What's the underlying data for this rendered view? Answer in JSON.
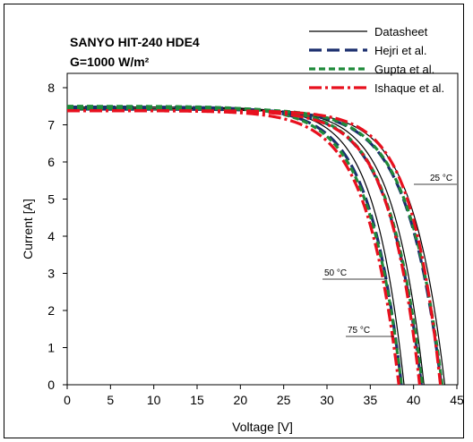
{
  "chart_data": {
    "type": "line",
    "title": "SANYO HIT-240 HDE4",
    "subtitle": "G=1000 W/m²",
    "xlabel": "Voltage [V]",
    "ylabel": "Current [A]",
    "xlim": [
      0,
      45
    ],
    "ylim": [
      0,
      8
    ],
    "xticks": [
      "0",
      "5",
      "10",
      "15",
      "20",
      "25",
      "30",
      "35",
      "40",
      "45"
    ],
    "yticks": [
      "0",
      "1",
      "2",
      "3",
      "4",
      "5",
      "6",
      "7",
      "8"
    ],
    "grid": false,
    "legend_position": "top-right",
    "annotations": [
      "25 °C",
      "50 °C",
      "75 °C"
    ],
    "series": [
      {
        "name": "Datasheet",
        "color": "#000000",
        "style": "solid",
        "curves": [
          {
            "temp": "25 °C",
            "isc": 7.4,
            "voc": 43.6,
            "knee": 32.5
          },
          {
            "temp": "50 °C",
            "isc": 7.44,
            "voc": 41.2,
            "knee": 30.5
          },
          {
            "temp": "75 °C",
            "isc": 7.48,
            "voc": 38.9,
            "knee": 28.5
          }
        ]
      },
      {
        "name": "Hejri et al.",
        "color": "#1b2f6e",
        "style": "dash",
        "curves": [
          {
            "temp": "25 °C",
            "isc": 7.42,
            "voc": 43.2,
            "knee": 31.5
          },
          {
            "temp": "50 °C",
            "isc": 7.45,
            "voc": 40.9,
            "knee": 29.5
          },
          {
            "temp": "75 °C",
            "isc": 7.48,
            "voc": 38.6,
            "knee": 27.5
          }
        ]
      },
      {
        "name": "Gupta et al.",
        "color": "#1f8a3a",
        "style": "dash-short",
        "curves": [
          {
            "temp": "25 °C",
            "isc": 7.44,
            "voc": 43.3,
            "knee": 31.5
          },
          {
            "temp": "50 °C",
            "isc": 7.47,
            "voc": 41.0,
            "knee": 29.5
          },
          {
            "temp": "75 °C",
            "isc": 7.5,
            "voc": 38.6,
            "knee": 27.0
          }
        ]
      },
      {
        "name": "Ishaque et al.",
        "color": "#e8101e",
        "style": "dash-dot",
        "curves": [
          {
            "temp": "25 °C",
            "isc": 7.38,
            "voc": 43.1,
            "knee": 33.0
          },
          {
            "temp": "50 °C",
            "isc": 7.38,
            "voc": 40.7,
            "knee": 30.0
          },
          {
            "temp": "75 °C",
            "isc": 7.38,
            "voc": 38.3,
            "knee": 27.0
          }
        ]
      }
    ]
  }
}
